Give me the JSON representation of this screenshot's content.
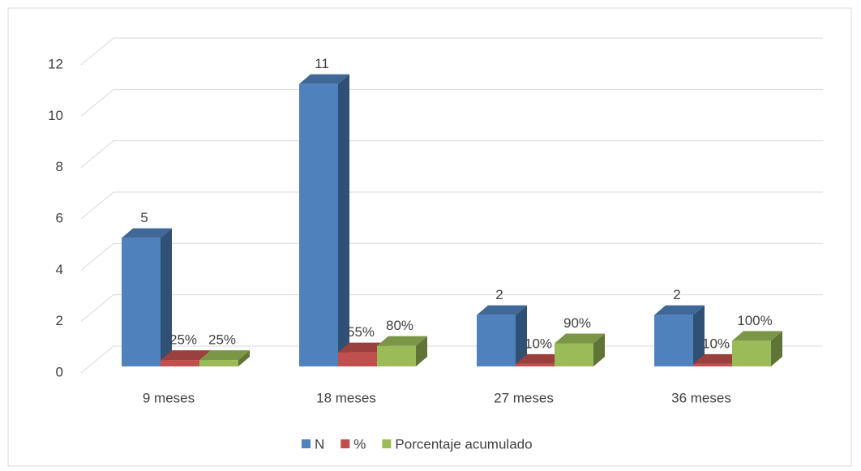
{
  "chart_data": {
    "type": "bar3d",
    "categories": [
      "9 meses",
      "18 meses",
      "27 meses",
      "36 meses"
    ],
    "series": [
      {
        "name": "N",
        "color": "#4f81bd",
        "values": [
          5,
          11,
          2,
          2
        ]
      },
      {
        "name": "%",
        "color": "#c0504d",
        "values": [
          0.25,
          0.55,
          0.1,
          0.1
        ],
        "value_labels": [
          "25%",
          "55%",
          "10%",
          "10%"
        ]
      },
      {
        "name": "Porcentaje acumulado",
        "color": "#9bbb59",
        "values": [
          0.25,
          0.8,
          0.9,
          1.0
        ],
        "value_labels": [
          "25%",
          "80%",
          "90%",
          "100%"
        ]
      }
    ],
    "ylim": [
      0,
      12
    ],
    "yticks": [
      0,
      2,
      4,
      6,
      8,
      10,
      12
    ],
    "grid": true,
    "legend": "bottom"
  }
}
